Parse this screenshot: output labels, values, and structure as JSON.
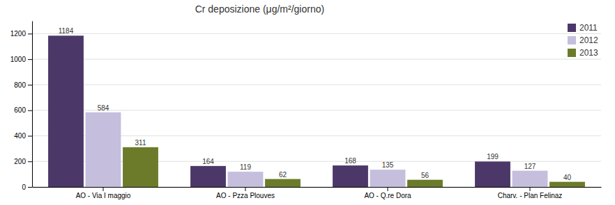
{
  "chart_data": {
    "type": "bar",
    "title": "Cr deposizione (μg/m²/giorno)",
    "categories": [
      "AO - Via I maggio",
      "AO - Pzza Plouves",
      "AO - Q.re Dora",
      "Charv. - Plan Felinaz"
    ],
    "series": [
      {
        "name": "2011",
        "color": "#4B3869",
        "values": [
          1184,
          164,
          168,
          199
        ]
      },
      {
        "name": "2012",
        "color": "#C5BEDD",
        "values": [
          584,
          119,
          135,
          127
        ]
      },
      {
        "name": "2013",
        "color": "#6B7B2A",
        "values": [
          311,
          62,
          56,
          40
        ]
      }
    ],
    "ylim": [
      0,
      1300
    ],
    "yticks": [
      0,
      200,
      400,
      600,
      800,
      1000,
      1200
    ],
    "grid": true,
    "legend": "upper right",
    "data_labels": true
  }
}
